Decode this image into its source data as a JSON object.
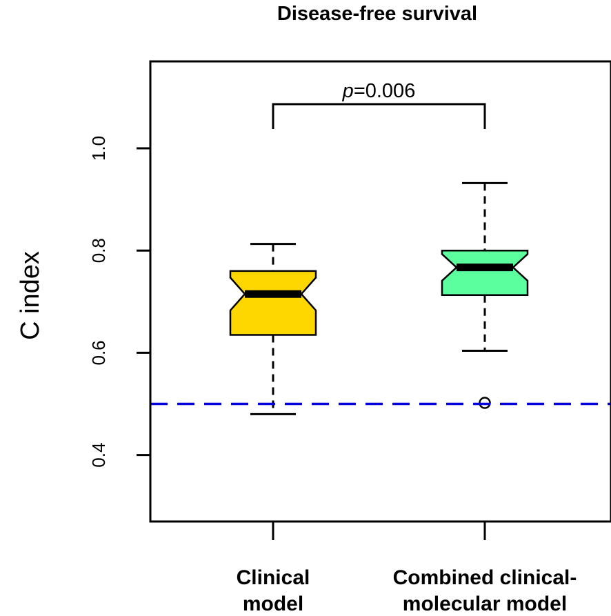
{
  "chart_data": {
    "type": "boxplot",
    "title": "Disease-free survival",
    "xlabel": "",
    "ylabel": "C index",
    "ylim": [
      0.27,
      1.17
    ],
    "yticks": [
      0.4,
      0.6,
      0.8,
      1.0
    ],
    "ytick_labels": [
      "0.4",
      "0.6",
      "0.8",
      "1.0"
    ],
    "notched": true,
    "categories": [
      {
        "lines": [
          "Clinical",
          "model"
        ]
      },
      {
        "lines": [
          "Combined clinical-",
          "molecular model"
        ]
      }
    ],
    "boxes": [
      {
        "name": "Clinical model",
        "whisker_low": 0.48,
        "q1": 0.635,
        "median": 0.715,
        "q3": 0.76,
        "whisker_high": 0.813,
        "notch_low": 0.683,
        "notch_high": 0.747,
        "outliers": [],
        "color": "#FFD700"
      },
      {
        "name": "Combined clinical-molecular model",
        "whisker_low": 0.604,
        "q1": 0.713,
        "median": 0.767,
        "q3": 0.8,
        "whisker_high": 0.932,
        "notch_low": 0.741,
        "notch_high": 0.793,
        "outliers": [
          0.502
        ],
        "color": "#5CFF9E"
      }
    ],
    "reference_line": {
      "y": 0.5,
      "color": "#0000DD",
      "style": "dashed"
    },
    "annotation": {
      "prefix": "p",
      "text": "=0.006",
      "between": [
        0,
        1
      ]
    }
  }
}
